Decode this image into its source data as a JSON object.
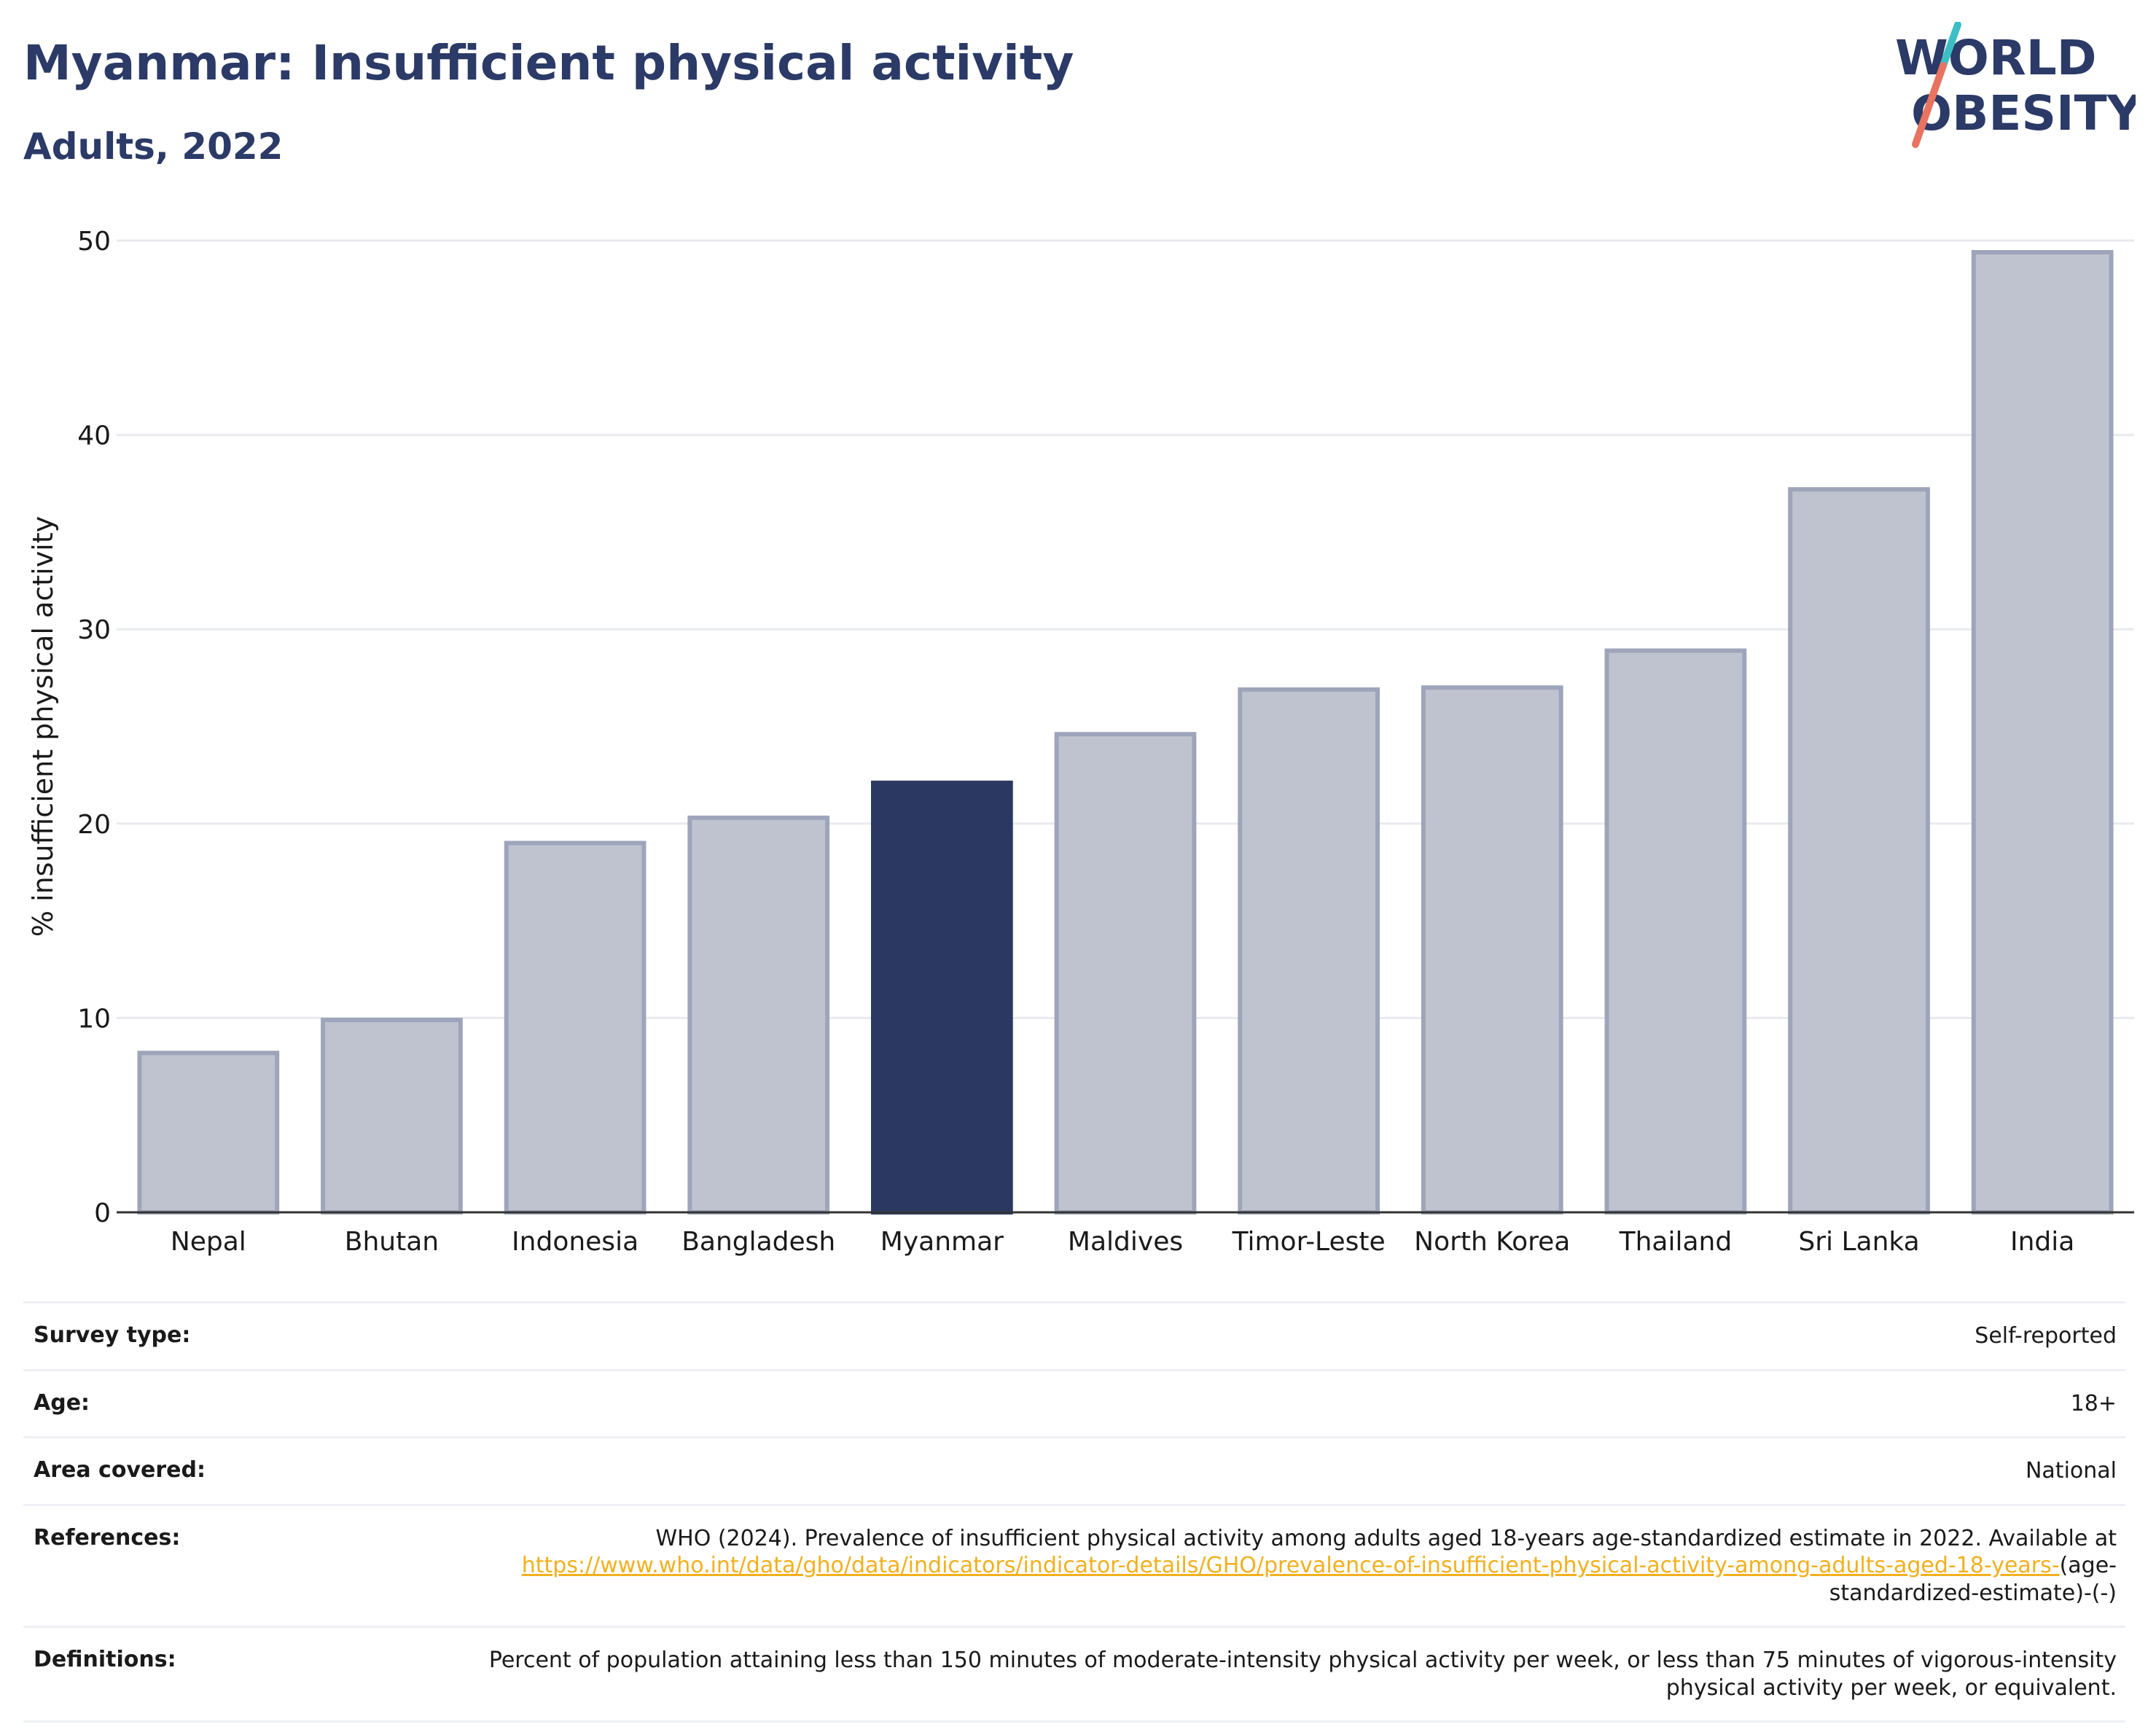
{
  "header": {
    "title": "Myanmar: Insufficient physical activity",
    "subtitle": "Adults, 2022"
  },
  "logo": {
    "line1": "WORLD",
    "line2": "OBESITY",
    "text_color": "#2b3a67",
    "slash_top_color": "#3bbfc4",
    "slash_bottom_color": "#e8735f"
  },
  "colors": {
    "highlight_bar": "#2b3861",
    "other_bar_fill": "#bfc3d0",
    "other_bar_border": "#9ea5ba",
    "gridline": "#e8eaf0",
    "link": "#f2b01e"
  },
  "chart_data": {
    "type": "bar",
    "categories": [
      "Nepal",
      "Bhutan",
      "Indonesia",
      "Bangladesh",
      "Myanmar",
      "Maldives",
      "Timor-Leste",
      "North Korea",
      "Thailand",
      "Sri Lanka",
      "India"
    ],
    "values": [
      8.2,
      9.9,
      19.0,
      20.3,
      22.1,
      24.6,
      26.9,
      27.0,
      28.9,
      37.2,
      49.4
    ],
    "highlight": "Myanmar",
    "title": "Myanmar: Insufficient physical activity",
    "subtitle": "Adults, 2022",
    "xlabel": "",
    "ylabel": "% insufficient physical activity",
    "ylim": [
      0,
      50
    ],
    "yticks": [
      0,
      10,
      20,
      30,
      40,
      50
    ],
    "grid": true,
    "legend": "none"
  },
  "meta": {
    "survey_type_label": "Survey type:",
    "survey_type_value": "Self-reported",
    "age_label": "Age:",
    "age_value": "18+",
    "area_label": "Area covered:",
    "area_value": "National",
    "references_label": "References:",
    "references_text": "WHO (2024). Prevalence of insufficient physical activity among adults aged 18-years age-standardized estimate in 2022. Available at",
    "references_link": "https://www.who.int/data/gho/data/indicators/indicator-details/GHO/prevalence-of-insufficient-physical-activity-among-adults-aged-18-years-",
    "references_suffix": "(age-standardized-estimate)-(-)",
    "definitions_label": "Definitions:",
    "definitions_value": "Percent of population attaining less than 150 minutes of moderate-intensity physical activity per week, or less than 75 minutes of vigorous-intensity physical activity per week, or equivalent."
  }
}
